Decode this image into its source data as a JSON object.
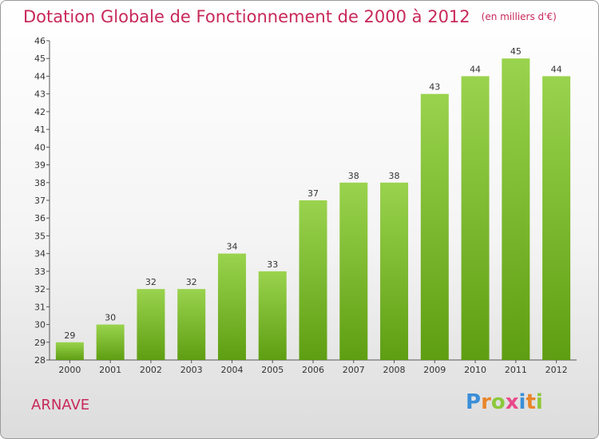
{
  "title": "Dotation Globale de Fonctionnement de 2000 à 2012",
  "subtitle": "(en milliers d'€)",
  "commune": "ARNAVE",
  "logo": {
    "text": "Proxiti",
    "letters": [
      "P",
      "r",
      "o",
      "x",
      "i",
      "t",
      "i"
    ],
    "colors": [
      "#3a8fd8",
      "#e8862a",
      "#8cc83c",
      "#e84a8a",
      "#3a8fd8",
      "#e8862a",
      "#8cc83c"
    ]
  },
  "colors": {
    "bar_top": "#9ad34e",
    "bar_bottom": "#5e9e12",
    "title": "#c8285a"
  },
  "chart_data": {
    "type": "bar",
    "title": "Dotation Globale de Fonctionnement de 2000 à 2012",
    "subtitle": "(en milliers d'€)",
    "xlabel": "",
    "ylabel": "",
    "categories": [
      "2000",
      "2001",
      "2002",
      "2003",
      "2004",
      "2005",
      "2006",
      "2007",
      "2008",
      "2009",
      "2010",
      "2011",
      "2012"
    ],
    "values": [
      29,
      30,
      32,
      32,
      34,
      33,
      37,
      38,
      38,
      43,
      44,
      45,
      44
    ],
    "ylim": [
      28,
      46
    ],
    "yticks": [
      28,
      29,
      30,
      31,
      32,
      33,
      34,
      35,
      36,
      37,
      38,
      39,
      40,
      41,
      42,
      43,
      44,
      45,
      46
    ],
    "grid": false,
    "legend": "none"
  }
}
